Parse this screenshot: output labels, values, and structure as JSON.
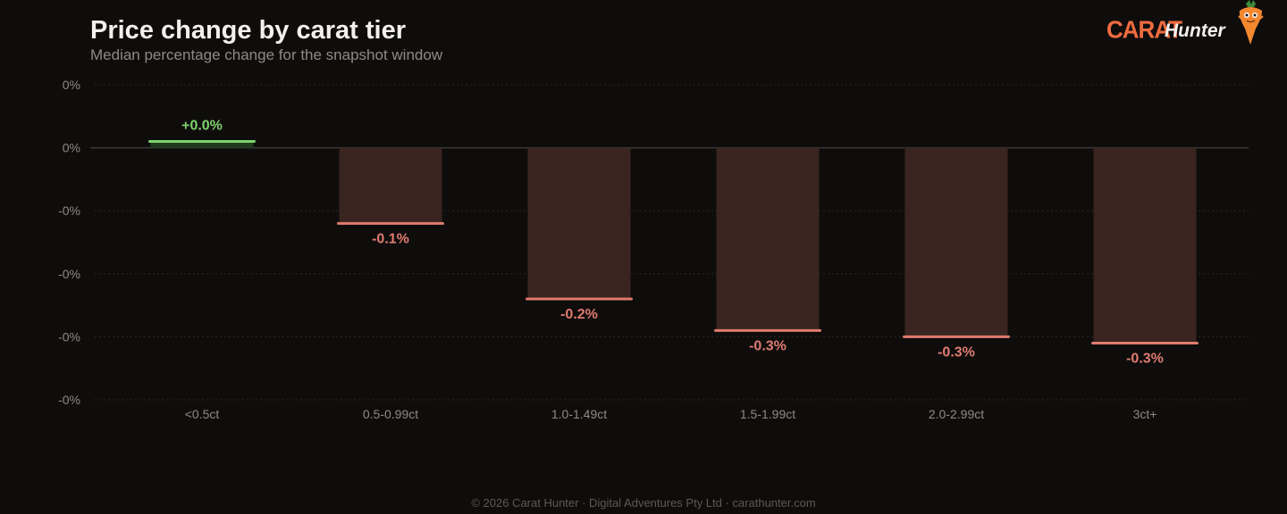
{
  "header": {
    "title": "Price change by carat tier",
    "subtitle": "Median percentage change for the snapshot window"
  },
  "logo": {
    "word1": "CARAT",
    "word2": "Hunter",
    "mascot_icon": "carrot-mascot-icon"
  },
  "footer": {
    "text": "© 2026 Carat Hunter · Digital Adventures Pty Ltd · carathunter.com"
  },
  "colors": {
    "background": "#0e0d0c",
    "positive": "#7ed36b",
    "negative": "#e07b6e",
    "negative_fill": "#3a2420",
    "positive_fill": "#1f3a1c",
    "grid": "#2a2826",
    "zero_line": "#3a3835",
    "tick_text": "#8e8a84",
    "logo_orange": "#f06b3f"
  },
  "chart_data": {
    "type": "bar",
    "categories": [
      "<0.5ct",
      "0.5-0.99ct",
      "1.0-1.49ct",
      "1.5-1.99ct",
      "2.0-2.99ct",
      "3ct+"
    ],
    "values": [
      0.01,
      -0.12,
      -0.24,
      -0.29,
      -0.3,
      -0.31
    ],
    "data_labels": [
      "+0.0%",
      "-0.1%",
      "-0.2%",
      "-0.3%",
      "-0.3%",
      "-0.3%"
    ],
    "y_ticks": [
      0.1,
      0.0,
      -0.1,
      -0.2,
      -0.3,
      -0.4
    ],
    "y_tick_labels": [
      "0%",
      "0%",
      "-0%",
      "-0%",
      "-0%",
      "-0%"
    ],
    "ylim": [
      -0.4,
      0.1
    ],
    "grid": true,
    "legend": "none"
  }
}
